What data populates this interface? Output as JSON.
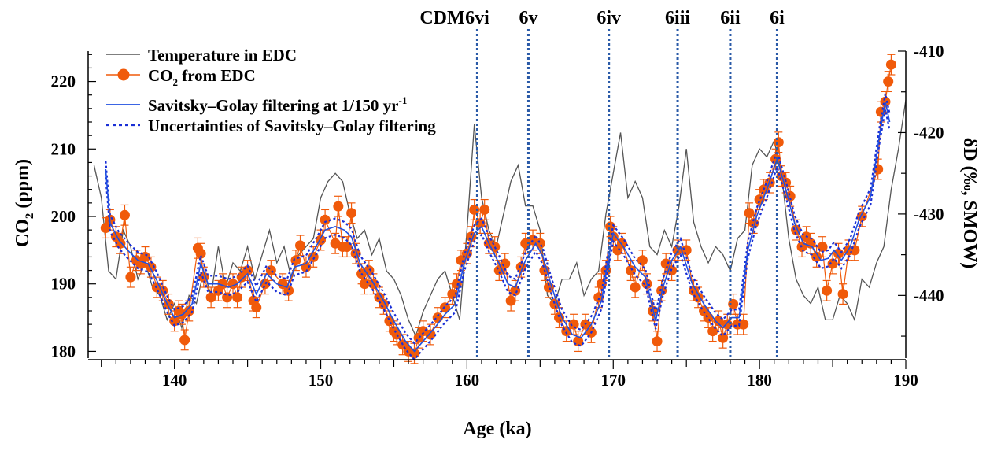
{
  "chart_data": {
    "type": "line",
    "xlabel": "Age (ka)",
    "ylabel_left": "CO",
    "ylabel_left_sub": "2",
    "ylabel_left_unit": " (ppm)",
    "ylabel_right": "δD (‰, SMOW)",
    "xlim": [
      134.1,
      190
    ],
    "ylim_left": [
      179,
      224.5
    ],
    "ylim_right": [
      -447.7,
      -410
    ],
    "x_ticks": [
      140,
      150,
      160,
      170,
      180,
      190
    ],
    "y_left_ticks": [
      180,
      190,
      200,
      210,
      220
    ],
    "y_right_ticks": [
      -410,
      -420,
      -430,
      -440
    ],
    "grid": false,
    "legend_position": "top-left",
    "colors": {
      "temperature": "#555555",
      "co2": "#f05a0a",
      "sg": "#1f4fe0",
      "uncertainty": "#1a2fd6",
      "markers": "#2a5aa8"
    },
    "legend": [
      {
        "label": "Temperature in EDC"
      },
      {
        "label": "CO",
        "sub": "2",
        "rest": " from EDC"
      },
      {
        "label": "Savitsky–Golay filtering at 1/150 yr",
        "sup": "-1"
      },
      {
        "label": "Uncertainties of Savitsky–Golay filtering"
      }
    ],
    "markers": [
      {
        "label": "6vi",
        "x": 160.7
      },
      {
        "label": "6v",
        "x": 164.2
      },
      {
        "label": "6iv",
        "x": 169.7
      },
      {
        "label": "6iii",
        "x": 174.4
      },
      {
        "label": "6ii",
        "x": 178.0
      },
      {
        "label": "6i",
        "x": 181.2
      }
    ],
    "marker_prefix": "CDM",
    "series": [
      {
        "name": "Temperature in EDC",
        "axis": "right",
        "x_start": 134.0,
        "x_step": 0.5,
        "values": [
          -418,
          -424,
          -428,
          -437,
          -438,
          -432,
          -434,
          -438,
          -436,
          -439,
          -440,
          -443,
          -441,
          -444,
          -440,
          -441,
          -437,
          -440,
          -434,
          -439,
          -436,
          -437,
          -434,
          -438,
          -435,
          -432,
          -436,
          -434,
          -438,
          -435,
          -434,
          -433,
          -428,
          -426,
          -425,
          -426,
          -430,
          -433,
          -432,
          -435,
          -433,
          -437,
          -438,
          -440,
          -443,
          -445,
          -442,
          -440,
          -438,
          -437,
          -440,
          -443,
          -432,
          -419,
          -428,
          -432,
          -434,
          -430,
          -426,
          -424,
          -429,
          -429,
          -432,
          -440,
          -441,
          -438,
          -438,
          -436,
          -440,
          -438,
          -437,
          -430,
          -425,
          -420,
          -428,
          -426,
          -428,
          -434,
          -435,
          -432,
          -434,
          -429,
          -422,
          -431,
          -434,
          -436,
          -434,
          -435,
          -437,
          -433,
          -432,
          -424,
          -422,
          -423,
          -421,
          -425,
          -433,
          -438,
          -440,
          -441,
          -439,
          -443,
          -443,
          -440,
          -441,
          -443,
          -438,
          -439,
          -436,
          -434,
          -427,
          -422,
          -416
        ]
      },
      {
        "name": "CO2 from EDC",
        "axis": "left",
        "error": 1.5,
        "points": [
          [
            135.3,
            198.3
          ],
          [
            135.6,
            199.5
          ],
          [
            136.0,
            197
          ],
          [
            136.3,
            196
          ],
          [
            136.6,
            200.2
          ],
          [
            137.0,
            191
          ],
          [
            137.4,
            193.5
          ],
          [
            137.7,
            193
          ],
          [
            138.0,
            194
          ],
          [
            138.4,
            192.5
          ],
          [
            138.8,
            189.5
          ],
          [
            139.2,
            189
          ],
          [
            139.6,
            187
          ],
          [
            140.0,
            184.5
          ],
          [
            140.3,
            186
          ],
          [
            140.5,
            185.5
          ],
          [
            140.7,
            181.7
          ],
          [
            141.0,
            186
          ],
          [
            141.6,
            195.3
          ],
          [
            141.8,
            194.5
          ],
          [
            142.0,
            191
          ],
          [
            142.5,
            188
          ],
          [
            143.0,
            189
          ],
          [
            143.3,
            190
          ],
          [
            143.6,
            188
          ],
          [
            144.0,
            190
          ],
          [
            144.3,
            188
          ],
          [
            144.6,
            191
          ],
          [
            145.0,
            192
          ],
          [
            145.4,
            187.5
          ],
          [
            145.6,
            186.5
          ],
          [
            146.2,
            190
          ],
          [
            146.6,
            192
          ],
          [
            147.4,
            190
          ],
          [
            147.8,
            189
          ],
          [
            148.3,
            193.5
          ],
          [
            148.6,
            195.7
          ],
          [
            149.0,
            192.5
          ],
          [
            149.5,
            194
          ],
          [
            150.0,
            196.5
          ],
          [
            150.3,
            199.5
          ],
          [
            151.0,
            196
          ],
          [
            151.2,
            201.5
          ],
          [
            151.5,
            195.5
          ],
          [
            151.8,
            195.5
          ],
          [
            152.1,
            200.5
          ],
          [
            152.4,
            194.5
          ],
          [
            152.8,
            191.5
          ],
          [
            153.0,
            190
          ],
          [
            153.3,
            192
          ],
          [
            153.6,
            190
          ],
          [
            154.0,
            188
          ],
          [
            154.3,
            187
          ],
          [
            154.7,
            184.5
          ],
          [
            155.0,
            183
          ],
          [
            155.2,
            182.5
          ],
          [
            155.6,
            181
          ],
          [
            156.0,
            180
          ],
          [
            156.4,
            179.7
          ],
          [
            156.7,
            182
          ],
          [
            157.0,
            183
          ],
          [
            157.5,
            182.5
          ],
          [
            158.0,
            185
          ],
          [
            158.5,
            186.5
          ],
          [
            159.0,
            188.5
          ],
          [
            159.3,
            190
          ],
          [
            159.6,
            193.5
          ],
          [
            160.0,
            194.5
          ],
          [
            160.3,
            197
          ],
          [
            160.5,
            201
          ],
          [
            160.9,
            199
          ],
          [
            161.2,
            201
          ],
          [
            161.5,
            196
          ],
          [
            161.9,
            195.5
          ],
          [
            162.2,
            192
          ],
          [
            162.6,
            193
          ],
          [
            163.0,
            187.5
          ],
          [
            163.3,
            189
          ],
          [
            163.7,
            192.5
          ],
          [
            164.0,
            196
          ],
          [
            164.5,
            196.5
          ],
          [
            165.0,
            196
          ],
          [
            165.3,
            192
          ],
          [
            165.6,
            189.5
          ],
          [
            166.0,
            187
          ],
          [
            166.3,
            185
          ],
          [
            166.8,
            183
          ],
          [
            167.3,
            184
          ],
          [
            167.6,
            181.5
          ],
          [
            168.1,
            184
          ],
          [
            168.5,
            182.8
          ],
          [
            169.0,
            188
          ],
          [
            169.2,
            190
          ],
          [
            169.5,
            192
          ],
          [
            169.8,
            198.5
          ],
          [
            170.0,
            197
          ],
          [
            170.3,
            195
          ],
          [
            170.6,
            196
          ],
          [
            171.2,
            192
          ],
          [
            171.5,
            189.5
          ],
          [
            172.0,
            193.5
          ],
          [
            172.3,
            190
          ],
          [
            172.7,
            186
          ],
          [
            173.0,
            181.5
          ],
          [
            173.3,
            189
          ],
          [
            173.6,
            193
          ],
          [
            174.0,
            192
          ],
          [
            174.4,
            195
          ],
          [
            175.0,
            195
          ],
          [
            175.5,
            189
          ],
          [
            175.8,
            188
          ],
          [
            176.2,
            186
          ],
          [
            176.5,
            185
          ],
          [
            176.8,
            183
          ],
          [
            177.2,
            184.5
          ],
          [
            177.5,
            182
          ],
          [
            177.8,
            184
          ],
          [
            178.2,
            187
          ],
          [
            178.5,
            184
          ],
          [
            178.9,
            184
          ],
          [
            179.3,
            200.5
          ],
          [
            179.6,
            199
          ],
          [
            180.0,
            202.5
          ],
          [
            180.3,
            204
          ],
          [
            180.7,
            205
          ],
          [
            181.1,
            208.5
          ],
          [
            181.3,
            211
          ],
          [
            181.5,
            206
          ],
          [
            181.8,
            205
          ],
          [
            182.1,
            203
          ],
          [
            182.5,
            198
          ],
          [
            182.9,
            195.5
          ],
          [
            183.2,
            197
          ],
          [
            183.5,
            196
          ],
          [
            183.9,
            194
          ],
          [
            184.3,
            195.5
          ],
          [
            184.6,
            189
          ],
          [
            185.0,
            193
          ],
          [
            185.4,
            194.5
          ],
          [
            185.7,
            188.5
          ],
          [
            186.1,
            195
          ],
          [
            186.5,
            195
          ],
          [
            187.0,
            200
          ],
          [
            188.1,
            207
          ],
          [
            188.3,
            215.5
          ],
          [
            188.6,
            217
          ],
          [
            188.8,
            220
          ],
          [
            189.0,
            222.5
          ]
        ]
      },
      {
        "name": "Savitsky–Golay filtering at 1/150 yr-1",
        "axis": "left",
        "uncertainty": 1.2,
        "points": [
          [
            135.3,
            207
          ],
          [
            135.6,
            199
          ],
          [
            136.2,
            196.5
          ],
          [
            136.8,
            195
          ],
          [
            137.5,
            193.5
          ],
          [
            138.2,
            193
          ],
          [
            138.8,
            190.5
          ],
          [
            139.5,
            187
          ],
          [
            140.0,
            185
          ],
          [
            140.6,
            185.5
          ],
          [
            141.2,
            187
          ],
          [
            141.8,
            193
          ],
          [
            142.3,
            190
          ],
          [
            143.0,
            190
          ],
          [
            143.7,
            189.5
          ],
          [
            144.3,
            190
          ],
          [
            145.0,
            191.5
          ],
          [
            145.6,
            188.5
          ],
          [
            146.3,
            191.5
          ],
          [
            147.0,
            190
          ],
          [
            147.7,
            189.5
          ],
          [
            148.2,
            192.5
          ],
          [
            149.0,
            193
          ],
          [
            149.8,
            196
          ],
          [
            150.3,
            198
          ],
          [
            151.0,
            198.5
          ],
          [
            151.6,
            198
          ],
          [
            152.1,
            197
          ],
          [
            152.7,
            193
          ],
          [
            153.5,
            190.5
          ],
          [
            154.3,
            187.5
          ],
          [
            155.0,
            184.5
          ],
          [
            155.8,
            181.5
          ],
          [
            156.4,
            180
          ],
          [
            157.0,
            181.5
          ],
          [
            157.8,
            183.5
          ],
          [
            158.5,
            185.5
          ],
          [
            159.2,
            187
          ],
          [
            159.8,
            193
          ],
          [
            160.5,
            197.5
          ],
          [
            161.0,
            198.5
          ],
          [
            161.5,
            196
          ],
          [
            162.2,
            193
          ],
          [
            162.8,
            190
          ],
          [
            163.3,
            189.5
          ],
          [
            164.0,
            193.5
          ],
          [
            164.7,
            196
          ],
          [
            165.2,
            194
          ],
          [
            165.8,
            189.5
          ],
          [
            166.5,
            185
          ],
          [
            167.2,
            182.5
          ],
          [
            167.8,
            182
          ],
          [
            168.5,
            184
          ],
          [
            169.2,
            187.5
          ],
          [
            169.6,
            193
          ],
          [
            170.0,
            197.5
          ],
          [
            170.7,
            195.5
          ],
          [
            171.5,
            192.5
          ],
          [
            172.2,
            191
          ],
          [
            172.9,
            184.5
          ],
          [
            173.4,
            189.5
          ],
          [
            174.0,
            193.5
          ],
          [
            174.6,
            195.5
          ],
          [
            175.4,
            190
          ],
          [
            176.2,
            187
          ],
          [
            177.0,
            184.5
          ],
          [
            177.5,
            183.5
          ],
          [
            178.1,
            185
          ],
          [
            178.6,
            185
          ],
          [
            179.2,
            195
          ],
          [
            179.8,
            200
          ],
          [
            180.5,
            204
          ],
          [
            181.2,
            208.5
          ],
          [
            181.8,
            204
          ],
          [
            182.4,
            199
          ],
          [
            183.0,
            196
          ],
          [
            183.6,
            195.5
          ],
          [
            184.2,
            193.5
          ],
          [
            184.7,
            193.8
          ],
          [
            185.1,
            195
          ],
          [
            185.6,
            193.5
          ],
          [
            186.2,
            195.5
          ],
          [
            186.8,
            199.5
          ],
          [
            187.6,
            203
          ],
          [
            188.2,
            212
          ],
          [
            188.6,
            217
          ],
          [
            188.9,
            214
          ]
        ]
      }
    ]
  }
}
